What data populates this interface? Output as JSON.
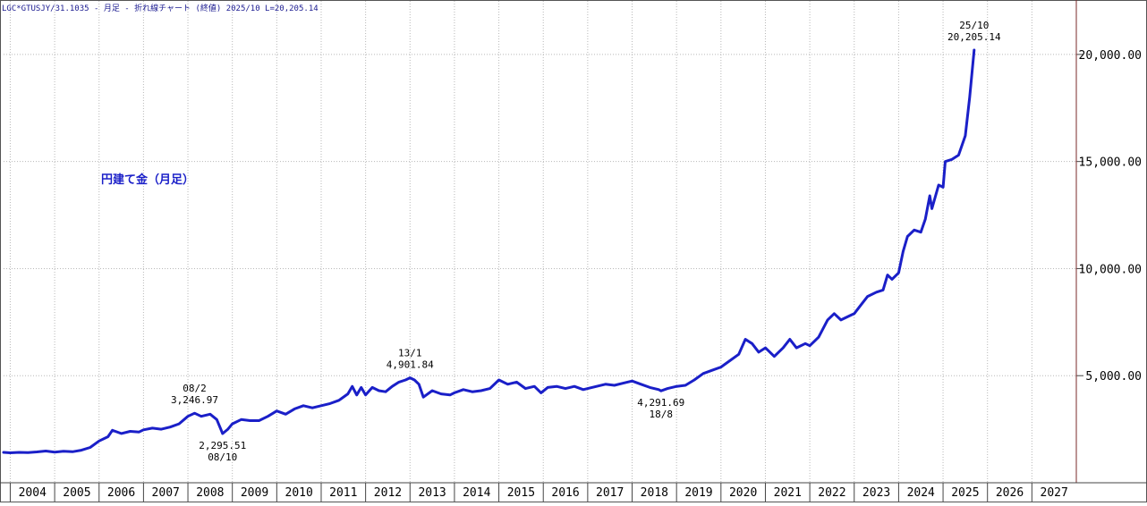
{
  "header": {
    "symbol": "LGC*GTUSJY/31.1035",
    "period": "月足",
    "chart_kind": "折れ線チャート",
    "price_kind": "(終値)",
    "last_info": "2025/10 L=20,205.14"
  },
  "colors": {
    "line": "#1a1fc8",
    "label": "#1a1fc8",
    "grid": "#b8b8b8",
    "border": "#7a2a2a"
  },
  "chart_data": {
    "type": "line",
    "title": "円建て金（月足）",
    "xlabel": "",
    "ylabel": "",
    "ylim": [
      0,
      22500
    ],
    "xlim": [
      2003.85,
      2028.0
    ],
    "grid": true,
    "y_axis_side": "right",
    "y_ticks": [
      {
        "value": 5000,
        "label": "5,000.00"
      },
      {
        "value": 10000,
        "label": "10,000.00"
      },
      {
        "value": 15000,
        "label": "15,000.00"
      },
      {
        "value": 20000,
        "label": "20,000.00"
      }
    ],
    "x_ticks": [
      "2004",
      "2005",
      "2006",
      "2007",
      "2008",
      "2009",
      "2010",
      "2011",
      "2012",
      "2013",
      "2014",
      "2015",
      "2016",
      "2017",
      "2018",
      "2019",
      "2020",
      "2021",
      "2022",
      "2023",
      "2024",
      "2025",
      "2026",
      "2027"
    ],
    "series": [
      {
        "values": [
          [
            2003.85,
            1420
          ],
          [
            2004.0,
            1400
          ],
          [
            2004.2,
            1420
          ],
          [
            2004.4,
            1410
          ],
          [
            2004.6,
            1440
          ],
          [
            2004.8,
            1480
          ],
          [
            2005.0,
            1430
          ],
          [
            2005.2,
            1470
          ],
          [
            2005.4,
            1450
          ],
          [
            2005.6,
            1520
          ],
          [
            2005.8,
            1650
          ],
          [
            2006.0,
            1950
          ],
          [
            2006.2,
            2150
          ],
          [
            2006.3,
            2450
          ],
          [
            2006.5,
            2300
          ],
          [
            2006.7,
            2400
          ],
          [
            2006.9,
            2370
          ],
          [
            2007.0,
            2470
          ],
          [
            2007.2,
            2550
          ],
          [
            2007.4,
            2500
          ],
          [
            2007.6,
            2600
          ],
          [
            2007.8,
            2750
          ],
          [
            2008.0,
            3100
          ],
          [
            2008.15,
            3246.97
          ],
          [
            2008.3,
            3100
          ],
          [
            2008.5,
            3200
          ],
          [
            2008.65,
            2950
          ],
          [
            2008.75,
            2450
          ],
          [
            2008.78,
            2295.51
          ],
          [
            2008.9,
            2500
          ],
          [
            2009.0,
            2750
          ],
          [
            2009.2,
            2950
          ],
          [
            2009.4,
            2900
          ],
          [
            2009.6,
            2900
          ],
          [
            2009.8,
            3100
          ],
          [
            2010.0,
            3350
          ],
          [
            2010.2,
            3200
          ],
          [
            2010.4,
            3450
          ],
          [
            2010.6,
            3600
          ],
          [
            2010.8,
            3500
          ],
          [
            2011.0,
            3600
          ],
          [
            2011.2,
            3700
          ],
          [
            2011.4,
            3850
          ],
          [
            2011.6,
            4150
          ],
          [
            2011.7,
            4500
          ],
          [
            2011.8,
            4100
          ],
          [
            2011.9,
            4450
          ],
          [
            2012.0,
            4100
          ],
          [
            2012.15,
            4450
          ],
          [
            2012.3,
            4300
          ],
          [
            2012.45,
            4250
          ],
          [
            2012.6,
            4500
          ],
          [
            2012.75,
            4700
          ],
          [
            2012.9,
            4800
          ],
          [
            2013.0,
            4901.84
          ],
          [
            2013.1,
            4800
          ],
          [
            2013.2,
            4600
          ],
          [
            2013.3,
            4000
          ],
          [
            2013.5,
            4300
          ],
          [
            2013.7,
            4150
          ],
          [
            2013.9,
            4100
          ],
          [
            2014.0,
            4200
          ],
          [
            2014.2,
            4350
          ],
          [
            2014.4,
            4250
          ],
          [
            2014.6,
            4300
          ],
          [
            2014.8,
            4400
          ],
          [
            2015.0,
            4800
          ],
          [
            2015.2,
            4600
          ],
          [
            2015.4,
            4700
          ],
          [
            2015.6,
            4400
          ],
          [
            2015.8,
            4500
          ],
          [
            2015.95,
            4200
          ],
          [
            2016.1,
            4450
          ],
          [
            2016.3,
            4500
          ],
          [
            2016.5,
            4400
          ],
          [
            2016.7,
            4500
          ],
          [
            2016.9,
            4350
          ],
          [
            2017.0,
            4400
          ],
          [
            2017.2,
            4500
          ],
          [
            2017.4,
            4600
          ],
          [
            2017.6,
            4550
          ],
          [
            2017.8,
            4650
          ],
          [
            2018.0,
            4750
          ],
          [
            2018.2,
            4600
          ],
          [
            2018.4,
            4450
          ],
          [
            2018.6,
            4350
          ],
          [
            2018.65,
            4291.69
          ],
          [
            2018.8,
            4400
          ],
          [
            2019.0,
            4500
          ],
          [
            2019.2,
            4550
          ],
          [
            2019.4,
            4800
          ],
          [
            2019.6,
            5100
          ],
          [
            2019.8,
            5250
          ],
          [
            2020.0,
            5400
          ],
          [
            2020.2,
            5700
          ],
          [
            2020.4,
            6000
          ],
          [
            2020.55,
            6700
          ],
          [
            2020.7,
            6500
          ],
          [
            2020.85,
            6100
          ],
          [
            2021.0,
            6300
          ],
          [
            2021.2,
            5900
          ],
          [
            2021.4,
            6300
          ],
          [
            2021.55,
            6700
          ],
          [
            2021.7,
            6300
          ],
          [
            2021.9,
            6500
          ],
          [
            2022.0,
            6400
          ],
          [
            2022.2,
            6800
          ],
          [
            2022.4,
            7600
          ],
          [
            2022.55,
            7900
          ],
          [
            2022.7,
            7600
          ],
          [
            2022.9,
            7800
          ],
          [
            2023.0,
            7900
          ],
          [
            2023.15,
            8300
          ],
          [
            2023.3,
            8700
          ],
          [
            2023.5,
            8900
          ],
          [
            2023.65,
            9000
          ],
          [
            2023.75,
            9700
          ],
          [
            2023.85,
            9500
          ],
          [
            2024.0,
            9800
          ],
          [
            2024.1,
            10800
          ],
          [
            2024.2,
            11500
          ],
          [
            2024.35,
            11800
          ],
          [
            2024.5,
            11700
          ],
          [
            2024.6,
            12300
          ],
          [
            2024.7,
            13400
          ],
          [
            2024.75,
            12800
          ],
          [
            2024.9,
            13900
          ],
          [
            2025.0,
            13800
          ],
          [
            2025.05,
            15000
          ],
          [
            2025.2,
            15100
          ],
          [
            2025.35,
            15300
          ],
          [
            2025.5,
            16200
          ],
          [
            2025.6,
            18000
          ],
          [
            2025.7,
            20205.14
          ]
        ]
      }
    ],
    "annotations": [
      {
        "x": 2008.15,
        "y": 3246.97,
        "date": "08/2",
        "value": "3,246.97",
        "side": "above"
      },
      {
        "x": 2008.78,
        "y": 2295.51,
        "date": "08/10",
        "value": "2,295.51",
        "side": "below"
      },
      {
        "x": 2013.0,
        "y": 4901.84,
        "date": "13/1",
        "value": "4,901.84",
        "side": "above"
      },
      {
        "x": 2018.65,
        "y": 4291.69,
        "date": "18/8",
        "value": "4,291.69",
        "side": "below"
      },
      {
        "x": 2025.7,
        "y": 20205.14,
        "date": "25/10",
        "value": "20,205.14",
        "side": "above"
      }
    ]
  }
}
